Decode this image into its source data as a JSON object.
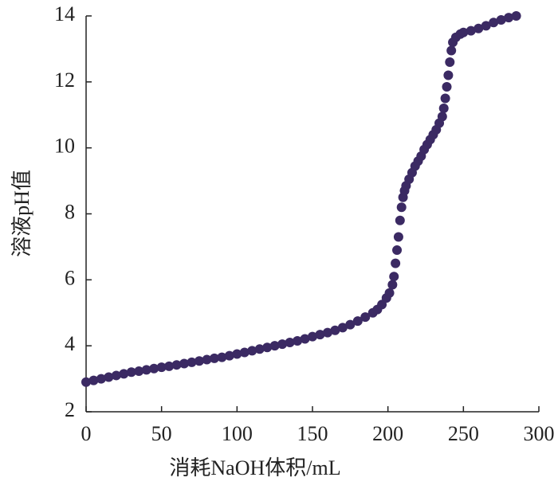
{
  "chart_data": {
    "type": "scatter",
    "xlabel": "消耗NaOH体积/mL",
    "ylabel": "溶液pH值",
    "xlim": [
      0,
      300
    ],
    "ylim": [
      2,
      14
    ],
    "xticks": [
      0,
      50,
      100,
      150,
      200,
      250,
      300
    ],
    "yticks": [
      2,
      4,
      6,
      8,
      10,
      12,
      14
    ],
    "color": "#3b2a63",
    "x": [
      0,
      5,
      10,
      15,
      20,
      25,
      30,
      35,
      40,
      45,
      50,
      55,
      60,
      65,
      70,
      75,
      80,
      85,
      90,
      95,
      100,
      105,
      110,
      115,
      120,
      125,
      130,
      135,
      140,
      145,
      150,
      155,
      160,
      165,
      170,
      175,
      180,
      185,
      190,
      193,
      196,
      199,
      201,
      203,
      204,
      205,
      206,
      207,
      208,
      209,
      210,
      211,
      212,
      214,
      216,
      218,
      220,
      222,
      224,
      226,
      228,
      230,
      232,
      234,
      236,
      237,
      238,
      239,
      240,
      241,
      242,
      243,
      245,
      248,
      250,
      255,
      260,
      265,
      270,
      275,
      280,
      285
    ],
    "y": [
      2.9,
      2.95,
      3.0,
      3.05,
      3.1,
      3.15,
      3.2,
      3.23,
      3.27,
      3.31,
      3.35,
      3.38,
      3.42,
      3.46,
      3.5,
      3.54,
      3.58,
      3.62,
      3.65,
      3.7,
      3.75,
      3.8,
      3.85,
      3.9,
      3.95,
      4.0,
      4.05,
      4.1,
      4.15,
      4.21,
      4.28,
      4.34,
      4.4,
      4.47,
      4.55,
      4.64,
      4.75,
      4.87,
      5.0,
      5.1,
      5.25,
      5.45,
      5.6,
      5.85,
      6.1,
      6.5,
      6.9,
      7.3,
      7.8,
      8.2,
      8.5,
      8.7,
      8.85,
      9.05,
      9.25,
      9.45,
      9.6,
      9.75,
      9.95,
      10.1,
      10.25,
      10.4,
      10.55,
      10.75,
      10.95,
      11.2,
      11.5,
      11.85,
      12.2,
      12.6,
      12.95,
      13.2,
      13.35,
      13.45,
      13.5,
      13.55,
      13.62,
      13.7,
      13.8,
      13.88,
      13.95,
      14.0
    ]
  }
}
